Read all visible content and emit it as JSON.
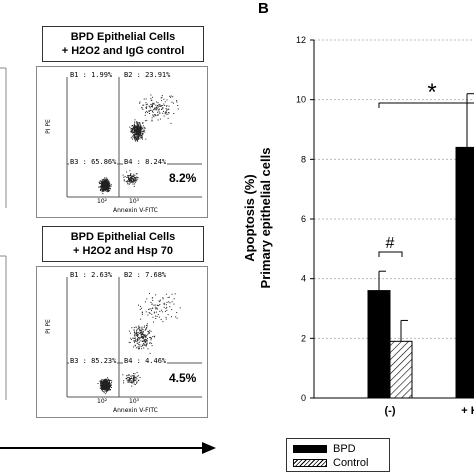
{
  "panel_letter": "B",
  "left_panel": {
    "top_caption": [
      "BPD Epithelial Cells",
      "+ H2O2 and IgG control"
    ],
    "bottom_caption": [
      "BPD Epithelial Cells",
      "+ H2O2 and Hsp 70"
    ],
    "top_plot": {
      "b1": "B1 : 1.99%",
      "b2": "B2 : 23.91%",
      "b3": "B3 : 65.86%",
      "b4": "B4 : 8.24%",
      "highlight": "8.2%",
      "xlabel": "Annexin V-FITC",
      "ylabel": "PI PE"
    },
    "bottom_plot": {
      "b1": "B1 : 2.63%",
      "b2": "B2 : 7.68%",
      "b3": "B3 : 85.23%",
      "b4": "B4 : 4.46%",
      "highlight": "4.5%",
      "xlabel": "Annexin V-FITC",
      "ylabel": "PI PE"
    },
    "axis_tick_a": "10²",
    "axis_tick_b": "10³"
  },
  "chart_data": {
    "type": "bar",
    "ylabel_line1": "Apoptosis (%)",
    "ylabel_line2": "Primary epithelial cells",
    "ylim": [
      0,
      12
    ],
    "yticks": [
      "0",
      "2",
      "4",
      "6",
      "8",
      "10",
      "12"
    ],
    "categories": [
      "(-)",
      "+ H"
    ],
    "grid": true,
    "series": [
      {
        "name": "BPD",
        "color": "#000000",
        "pattern": "solid",
        "values": [
          3.6,
          8.4
        ],
        "errors": [
          0.65,
          1.8
        ]
      },
      {
        "name": "Control",
        "color": "#ffffff",
        "pattern": "hatch",
        "values": [
          1.9,
          null
        ],
        "errors": [
          0.7,
          null
        ]
      }
    ],
    "annotations": [
      "#",
      "*"
    ],
    "legend_position": "bottom"
  }
}
